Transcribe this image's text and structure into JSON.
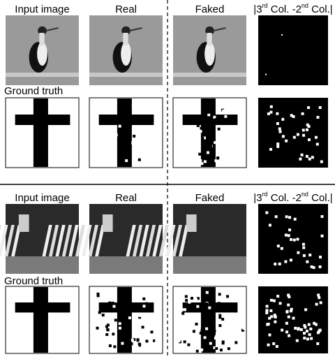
{
  "blocks": [
    {
      "headers": [
        "Input image",
        "Real",
        "Faked"
      ],
      "diff_header": {
        "pre": "|3",
        "sup1": "rd",
        "mid": " Col. -2",
        "sup2": "nd",
        "post": " Col.|"
      },
      "ground_truth_label": "Ground truth"
    },
    {
      "headers": [
        "Input image",
        "Real",
        "Faked"
      ],
      "diff_header": {
        "pre": "|3",
        "sup1": "rd",
        "mid": " Col. -2",
        "sup2": "nd",
        "post": " Col.|"
      },
      "ground_truth_label": "Ground truth"
    }
  ]
}
